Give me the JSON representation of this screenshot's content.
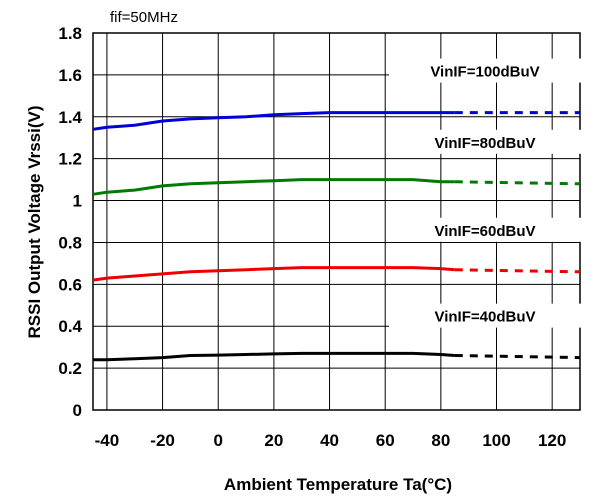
{
  "chart_data": {
    "type": "line",
    "condition": "fif=50MHz",
    "xlabel": "Ambient Temperature Ta(°C)",
    "ylabel": "RSSI Output Voltage Vrssi(V)",
    "xlim": [
      -45,
      130
    ],
    "ylim": [
      0,
      1.8
    ],
    "x_ticks": [
      -40,
      -20,
      0,
      20,
      40,
      60,
      80,
      100,
      120
    ],
    "x_tick_labels": [
      "-40",
      "-20",
      "0",
      "20",
      "40",
      "60",
      "80",
      "100",
      "120"
    ],
    "y_ticks": [
      0,
      0.2,
      0.4,
      0.6,
      0.8,
      1.0,
      1.2,
      1.4,
      1.6,
      1.8
    ],
    "y_tick_labels": [
      "0",
      "0.2",
      "0.4",
      "0.6",
      "0.8",
      "1",
      "1.2",
      "1.4",
      "1.6",
      "1.8"
    ],
    "grid": true,
    "measured_range_end": 85,
    "series": [
      {
        "name": "VinIF=100dBuV",
        "color": "#0000dd",
        "x": [
          -45,
          -40,
          -30,
          -20,
          -10,
          0,
          10,
          20,
          30,
          40,
          50,
          60,
          70,
          80,
          85,
          130
        ],
        "y": [
          1.34,
          1.35,
          1.36,
          1.38,
          1.39,
          1.395,
          1.4,
          1.41,
          1.415,
          1.42,
          1.42,
          1.42,
          1.42,
          1.42,
          1.42,
          1.42
        ]
      },
      {
        "name": "VinIF=80dBuV",
        "color": "#007a00",
        "x": [
          -45,
          -40,
          -30,
          -20,
          -10,
          0,
          10,
          20,
          30,
          40,
          50,
          60,
          70,
          80,
          85,
          130
        ],
        "y": [
          1.03,
          1.04,
          1.05,
          1.07,
          1.08,
          1.085,
          1.09,
          1.095,
          1.1,
          1.1,
          1.1,
          1.1,
          1.1,
          1.09,
          1.09,
          1.08
        ]
      },
      {
        "name": "VinIF=60dBuV",
        "color": "#ee0000",
        "x": [
          -45,
          -40,
          -30,
          -20,
          -10,
          0,
          10,
          20,
          30,
          40,
          50,
          60,
          70,
          80,
          85,
          130
        ],
        "y": [
          0.62,
          0.63,
          0.64,
          0.65,
          0.66,
          0.665,
          0.67,
          0.675,
          0.68,
          0.68,
          0.68,
          0.68,
          0.68,
          0.675,
          0.67,
          0.66
        ]
      },
      {
        "name": "VinIF=40dBuV",
        "color": "#000000",
        "x": [
          -45,
          -40,
          -30,
          -20,
          -10,
          0,
          10,
          20,
          30,
          40,
          50,
          60,
          70,
          80,
          85,
          130
        ],
        "y": [
          0.24,
          0.24,
          0.245,
          0.25,
          0.26,
          0.262,
          0.265,
          0.268,
          0.27,
          0.27,
          0.27,
          0.27,
          0.27,
          0.265,
          0.26,
          0.25
        ]
      }
    ]
  }
}
